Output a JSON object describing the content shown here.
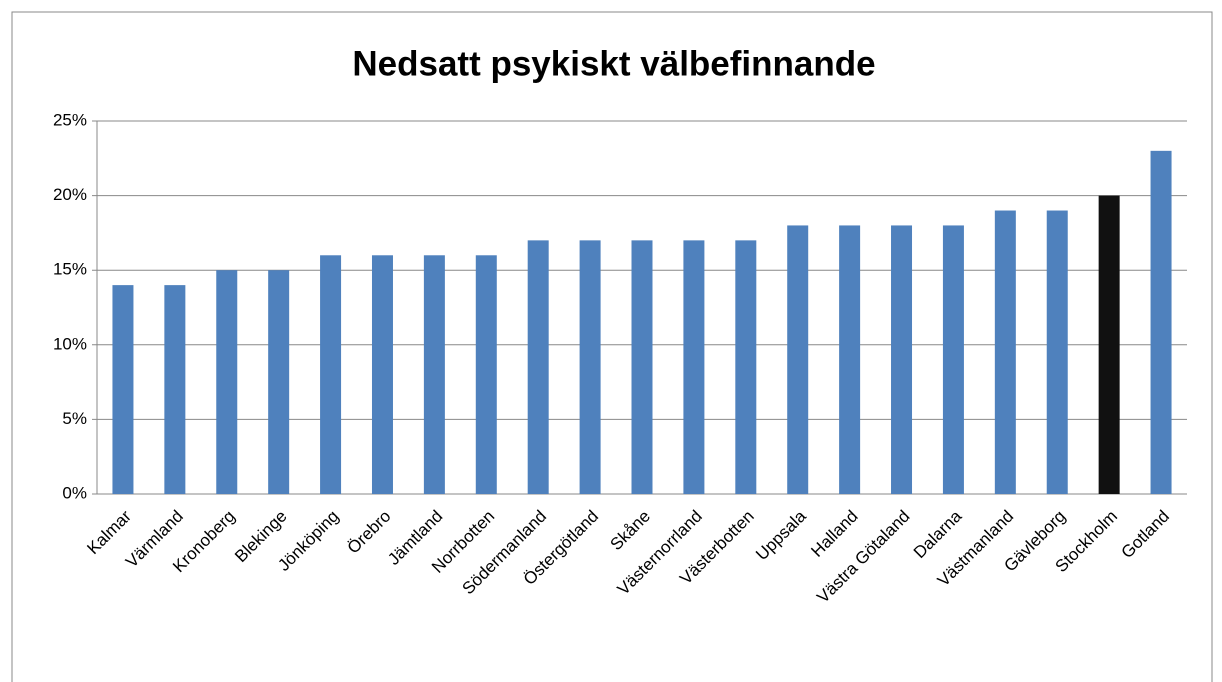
{
  "chart_data": {
    "type": "bar",
    "title": "Nedsatt psykiskt välbefinnande",
    "categories": [
      "Kalmar",
      "Värmland",
      "Kronoberg",
      "Blekinge",
      "Jönköping",
      "Örebro",
      "Jämtland",
      "Norrbotten",
      "Södermanland",
      "Östergötland",
      "Skåne",
      "Västernorrland",
      "Västerbotten",
      "Uppsala",
      "Halland",
      "Västra Götaland",
      "Dalarna",
      "Västmanland",
      "Gävleborg",
      "Stockholm",
      "Gotland"
    ],
    "values": [
      14,
      14,
      15,
      15,
      16,
      16,
      16,
      16,
      17,
      17,
      17,
      17,
      17,
      18,
      18,
      18,
      18,
      19,
      19,
      20,
      23
    ],
    "colors": [
      "#4f81bd",
      "#4f81bd",
      "#4f81bd",
      "#4f81bd",
      "#4f81bd",
      "#4f81bd",
      "#4f81bd",
      "#4f81bd",
      "#4f81bd",
      "#4f81bd",
      "#4f81bd",
      "#4f81bd",
      "#4f81bd",
      "#4f81bd",
      "#4f81bd",
      "#4f81bd",
      "#4f81bd",
      "#4f81bd",
      "#4f81bd",
      "#111111",
      "#4f81bd"
    ],
    "ylim": [
      0,
      25
    ],
    "yticks": [
      {
        "value": 0,
        "label": "0%"
      },
      {
        "value": 5,
        "label": "5%"
      },
      {
        "value": 10,
        "label": "10%"
      },
      {
        "value": 15,
        "label": "15%"
      },
      {
        "value": 20,
        "label": "20%"
      },
      {
        "value": 25,
        "label": "25%"
      }
    ],
    "grid": true
  }
}
